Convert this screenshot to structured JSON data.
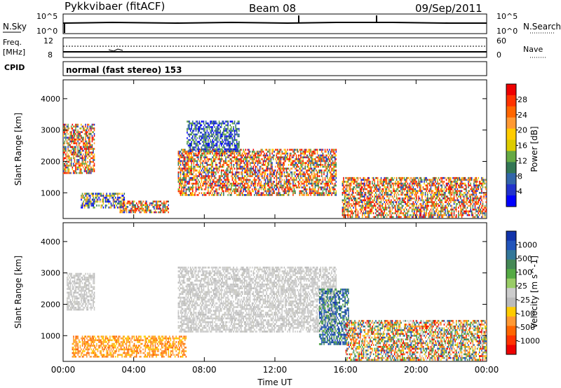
{
  "header": {
    "title": "Pykkvibaer (fitACF)",
    "beam": "Beam 08",
    "date": "09/Sep/2011"
  },
  "params": {
    "nsky_label": "N.Sky",
    "nsearch_label": "N.Search",
    "nsky_ticks": [
      "10^5",
      "10^0"
    ],
    "nsearch_ticks": [
      "10^5",
      "10^0"
    ],
    "freq_label_1": "Freq.",
    "freq_label_2": "[MHz]",
    "freq_ticks": [
      "12",
      "8"
    ],
    "nave_label": "Nave",
    "nave_ticks": [
      "60",
      "0"
    ],
    "cpid_label": "CPID",
    "cpid_text": "normal (fast stereo) 153"
  },
  "chart_data": [
    {
      "type": "heatmap",
      "name": "power",
      "ylabel": "Slant Range [km]",
      "xlabel": "",
      "ylim": [
        180,
        4600
      ],
      "yticks": [
        1000,
        2000,
        3000,
        4000
      ],
      "colorbar": {
        "label": "Power [dB]",
        "range": [
          0,
          32
        ],
        "ticks": [
          "28",
          "24",
          "20",
          "16",
          "12",
          "8",
          "4"
        ],
        "colors": [
          "#ee0000",
          "#ff3300",
          "#ff6600",
          "#ff9933",
          "#ffcc00",
          "#ddcc00",
          "#66aa44",
          "#337755",
          "#3366aa",
          "#2233cc",
          "#0000ff"
        ]
      },
      "echo_regions": [
        {
          "t0": 0.0,
          "t1": 1.8,
          "r0": 1600,
          "r1": 3200,
          "level": "high"
        },
        {
          "t0": 1.0,
          "t1": 3.5,
          "r0": 500,
          "r1": 1000,
          "level": "mid"
        },
        {
          "t0": 3.2,
          "t1": 6.0,
          "r0": 350,
          "r1": 750,
          "level": "high"
        },
        {
          "t0": 6.5,
          "t1": 15.5,
          "r0": 900,
          "r1": 2400,
          "level": "high"
        },
        {
          "t0": 7.0,
          "t1": 10.0,
          "r0": 2300,
          "r1": 3300,
          "level": "low"
        },
        {
          "t0": 15.8,
          "t1": 24.0,
          "r0": 200,
          "r1": 1500,
          "level": "high"
        }
      ]
    },
    {
      "type": "heatmap",
      "name": "velocity",
      "ylabel": "Slant Range [km]",
      "xlabel": "Time UT",
      "ylim": [
        180,
        4600
      ],
      "yticks": [
        1000,
        2000,
        3000,
        4000
      ],
      "xticks": [
        "00:00",
        "04:00",
        "08:00",
        "12:00",
        "16:00",
        "20:00",
        "00:00"
      ],
      "colorbar": {
        "label": "Velocity [m s^-1]",
        "ticks": [
          "1000",
          "500",
          "100",
          "25",
          "-25",
          "-100",
          "-500",
          "-1000"
        ],
        "colors": [
          "#1133aa",
          "#2255bb",
          "#337799",
          "#448855",
          "#55aa44",
          "#99cc66",
          "#cccccc",
          "#bbbbbb",
          "#ffcc00",
          "#ff9933",
          "#ff6600",
          "#ff3300",
          "#ee0000"
        ]
      },
      "echo_regions": [
        {
          "t0": 0.2,
          "t1": 1.8,
          "r0": 1800,
          "r1": 3000,
          "level": "ground"
        },
        {
          "t0": 0.5,
          "t1": 7.0,
          "r0": 300,
          "r1": 1000,
          "level": "negative"
        },
        {
          "t0": 6.5,
          "t1": 15.5,
          "r0": 1100,
          "r1": 3200,
          "level": "ground"
        },
        {
          "t0": 14.5,
          "t1": 16.2,
          "r0": 700,
          "r1": 2500,
          "level": "positive"
        },
        {
          "t0": 16.0,
          "t1": 24.0,
          "r0": 200,
          "r1": 1500,
          "level": "mixed"
        }
      ]
    }
  ]
}
